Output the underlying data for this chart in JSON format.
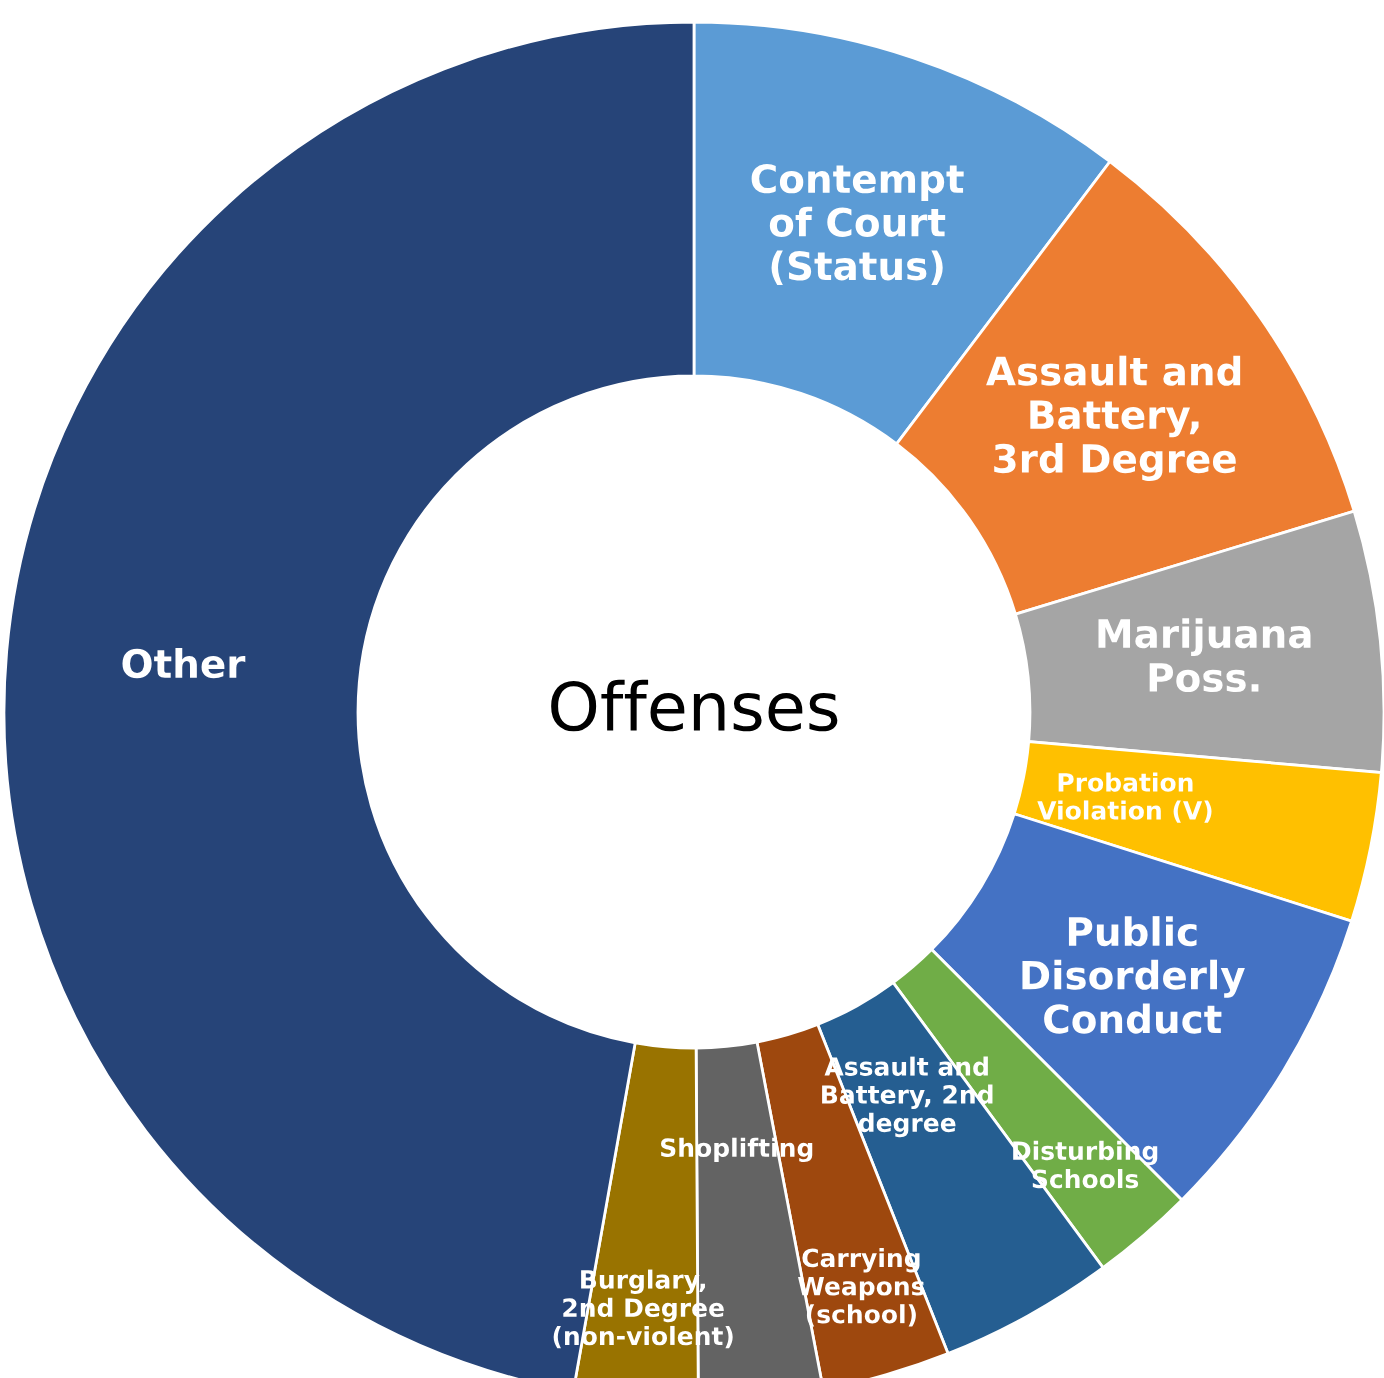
{
  "chart_data": {
    "type": "donut",
    "categories": [
      "Contempt\nof Court\n(Status)",
      "Assault and\nBattery,\n3rd Degree",
      "Marijuana\nPoss.",
      "Probation\nViolation (V)",
      "Public\nDisorderly\nConduct",
      "Disturbing\nSchools",
      "Assault and\nBattery, 2nd\ndegree",
      "Carrying\nWeapons\n(school)",
      "Shoplifting",
      "Burglary,\n2nd Degree\n(non-violent)",
      "Other"
    ],
    "values": [
      10.3,
      10.0,
      6.1,
      3.5,
      7.6,
      2.4,
      4.1,
      3.0,
      2.9,
      2.9,
      47.2
    ],
    "colors": [
      "#5b9bd5",
      "#ed7d31",
      "#a5a5a5",
      "#ffc000",
      "#4472c4",
      "#70ad47",
      "#255e91",
      "#9e480e",
      "#636363",
      "#997300",
      "#264478"
    ],
    "annotations": [
      "Offenses"
    ]
  }
}
